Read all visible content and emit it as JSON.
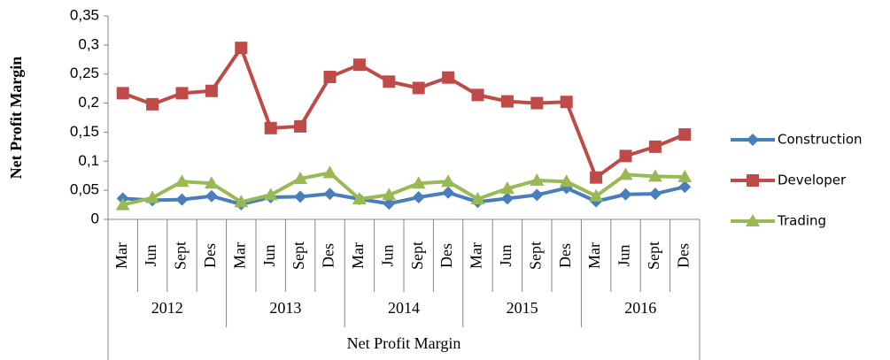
{
  "chart_data": {
    "type": "line",
    "y_label": "Net Profit Margin",
    "x_label": "Net Profit Margin",
    "categories": [
      "Mar",
      "Jun",
      "Sept",
      "Des",
      "Mar",
      "Jun",
      "Sept",
      "Des",
      "Mar",
      "Jun",
      "Sept",
      "Des",
      "Mar",
      "Jun",
      "Sept",
      "Des",
      "Mar",
      "Jun",
      "Sept",
      "Des"
    ],
    "groups": [
      "2012",
      "2013",
      "2014",
      "2015",
      "2016"
    ],
    "series": [
      {
        "name": "Construction",
        "color": "#4a7ebb",
        "marker": "diamond",
        "values": [
          0.036,
          0.033,
          0.034,
          0.04,
          0.026,
          0.038,
          0.039,
          0.044,
          0.035,
          0.027,
          0.038,
          0.046,
          0.03,
          0.036,
          0.042,
          0.054,
          0.031,
          0.043,
          0.044,
          0.056
        ]
      },
      {
        "name": "Developer",
        "color": "#be4b48",
        "marker": "square",
        "values": [
          0.217,
          0.198,
          0.217,
          0.221,
          0.295,
          0.157,
          0.16,
          0.245,
          0.266,
          0.237,
          0.226,
          0.244,
          0.214,
          0.203,
          0.2,
          0.202,
          0.072,
          0.109,
          0.125,
          0.146
        ]
      },
      {
        "name": "Trading",
        "color": "#98b954",
        "marker": "triangle",
        "values": [
          0.025,
          0.037,
          0.065,
          0.062,
          0.03,
          0.042,
          0.07,
          0.08,
          0.035,
          0.042,
          0.062,
          0.065,
          0.035,
          0.053,
          0.067,
          0.065,
          0.04,
          0.077,
          0.074,
          0.073
        ]
      }
    ],
    "ylim": [
      0,
      0.35
    ],
    "yticks": [
      0,
      {
        "value": 0.05,
        "label": "0,05"
      },
      {
        "value": 0.1,
        "label": "0,1"
      },
      {
        "value": 0.15,
        "label": "0,15"
      },
      {
        "value": 0.2,
        "label": "0,2"
      },
      {
        "value": 0.25,
        "label": "0,25"
      },
      {
        "value": 0.3,
        "label": "0,3"
      },
      {
        "value": 0.35,
        "label": "0,35"
      }
    ],
    "grid": false,
    "legend": "right"
  }
}
